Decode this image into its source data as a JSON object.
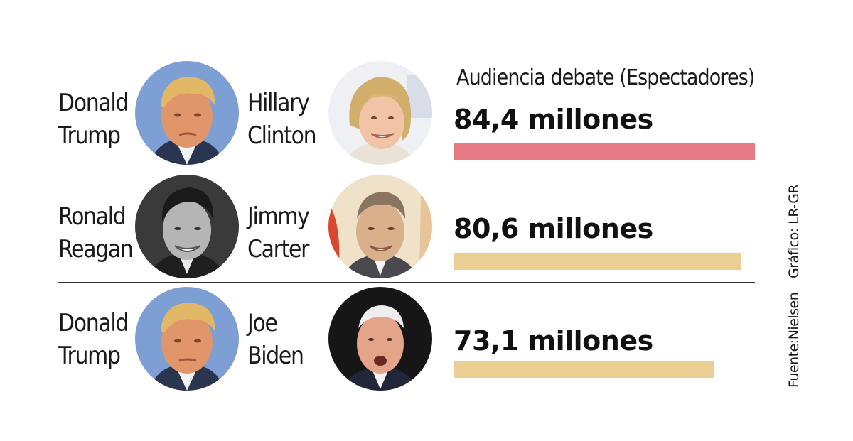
{
  "chart_data": {
    "type": "bar",
    "title": "Audiencia debate (Espectadores)",
    "unit": "millones",
    "categories": [
      "Donald Trump vs Hillary Clinton",
      "Ronald Reagan vs Jimmy Carter",
      "Donald Trump vs Joe Biden"
    ],
    "values": [
      84.4,
      80.6,
      73.1
    ],
    "value_labels": [
      "84,4 millones",
      "80,6 millones",
      "73,1 millones"
    ],
    "xlim": [
      0,
      84.4
    ]
  },
  "rows": [
    {
      "left": {
        "first": "Donald",
        "last": "Trump",
        "avatar": "donald-trump-portrait"
      },
      "right": {
        "first": "Hillary",
        "last": "Clinton",
        "avatar": "hillary-clinton-portrait"
      },
      "bar_color": "#e87a83"
    },
    {
      "left": {
        "first": "Ronald",
        "last": "Reagan",
        "avatar": "ronald-reagan-portrait"
      },
      "right": {
        "first": "Jimmy",
        "last": "Carter",
        "avatar": "jimmy-carter-portrait"
      },
      "bar_color": "#ebcf92"
    },
    {
      "left": {
        "first": "Donald",
        "last": "Trump",
        "avatar": "donald-trump-portrait"
      },
      "right": {
        "first": "Joe",
        "last": "Biden",
        "avatar": "joe-biden-portrait"
      },
      "bar_color": "#ebcf92"
    }
  ],
  "credits": {
    "graphic": "Gráfico: LR-GR",
    "source": "Fuente:Nielsen"
  }
}
